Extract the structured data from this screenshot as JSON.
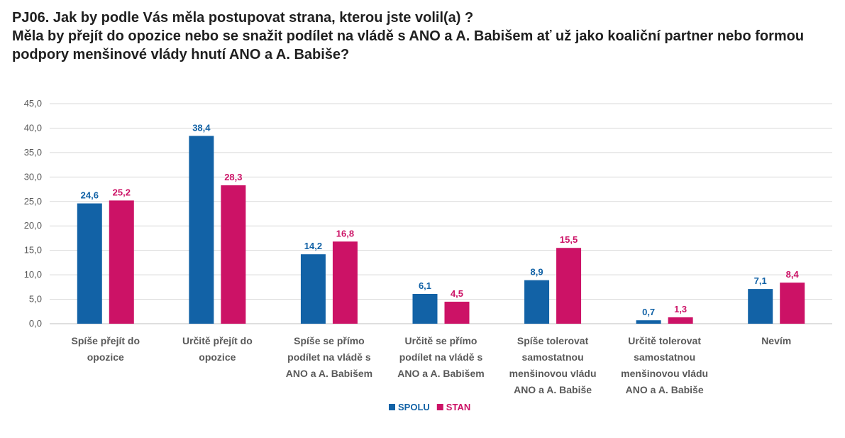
{
  "title_lines": [
    "PJ06. Jak by podle Vás měla postupovat strana, kterou jste volil(a) ?",
    "Měla by přejít do opozice nebo se snažit podílet na vládě s ANO a A. Babišem ať už jako koaliční partner nebo formou",
    "podpory menšinové vlády hnutí ANO a A. Babiše?"
  ],
  "chart_data": {
    "type": "bar",
    "categories": [
      [
        "Spíše přejít do",
        "opozice"
      ],
      [
        "Určitě přejít do",
        "opozice"
      ],
      [
        "Spíše se přímo",
        "podílet na vládě s",
        "ANO a A. Babišem"
      ],
      [
        "Určitě se přímo",
        "podílet na vládě s",
        "ANO a A. Babišem"
      ],
      [
        "Spíše tolerovat",
        "samostatnou",
        "menšinovou vládu",
        "ANO a A. Babiše"
      ],
      [
        "Určitě tolerovat",
        "samostatnou",
        "menšinovou vládu",
        "ANO a A. Babiše"
      ],
      [
        "Nevím"
      ]
    ],
    "series": [
      {
        "name": "SPOLU",
        "color": "#1262A6",
        "values": [
          24.6,
          38.4,
          14.2,
          6.1,
          8.9,
          0.7,
          7.1
        ]
      },
      {
        "name": "STAN",
        "color": "#CC1266",
        "values": [
          25.2,
          28.3,
          16.8,
          4.5,
          15.5,
          1.3,
          8.4
        ]
      }
    ],
    "ylim": [
      0,
      45
    ],
    "yticks": [
      0,
      5,
      10,
      15,
      20,
      25,
      30,
      35,
      40,
      45
    ],
    "grid": true,
    "legend": "bottom-center",
    "number_format": "comma-1-decimal"
  }
}
